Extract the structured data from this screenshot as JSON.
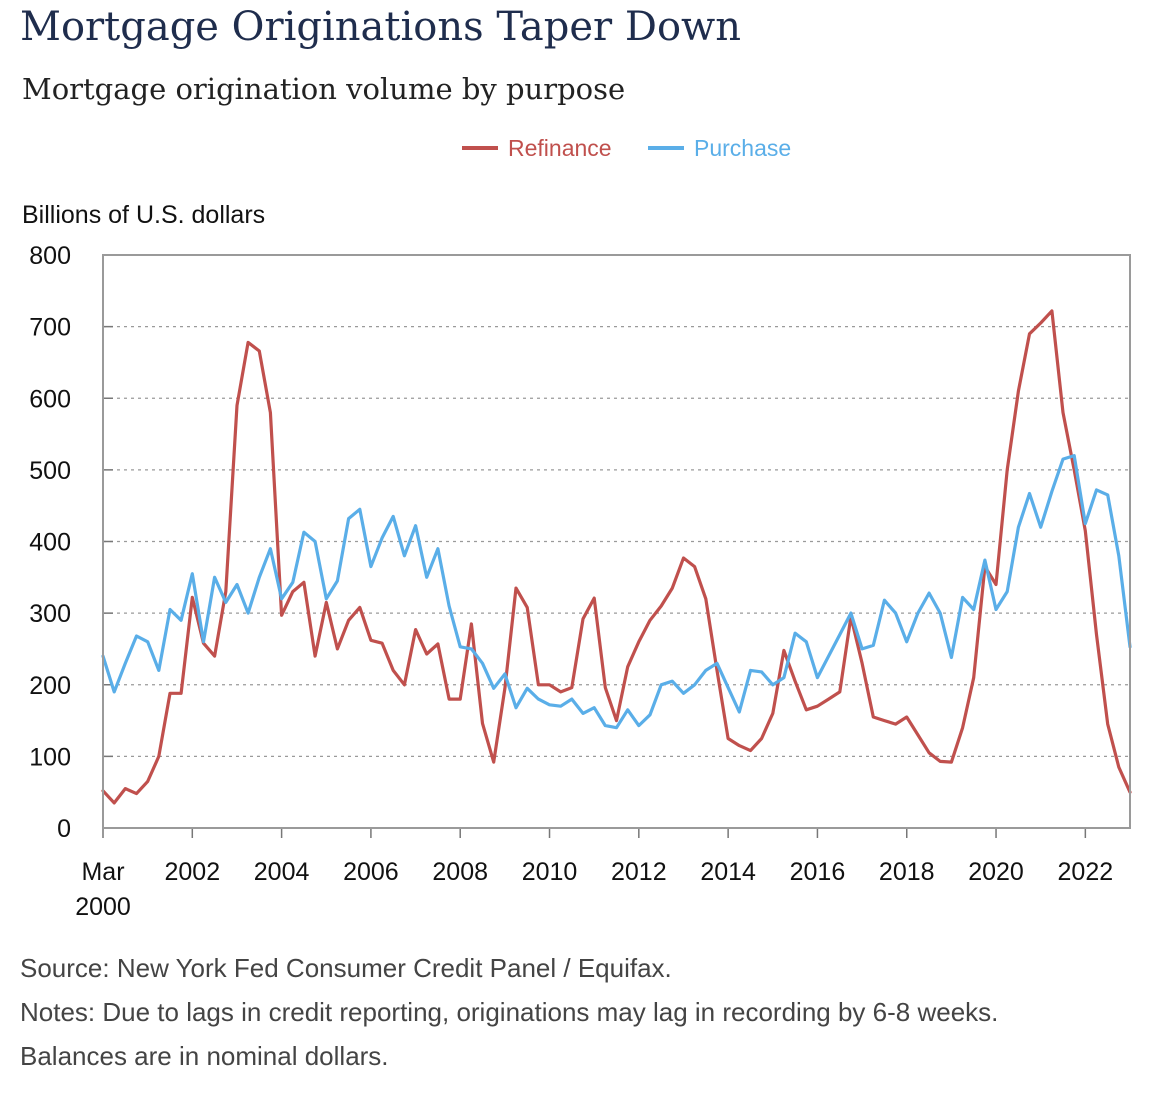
{
  "chart_data": {
    "type": "line",
    "title": "Mortgage Originations Taper Down",
    "subtitle": "Mortgage origination volume by purpose",
    "ylabel": "Billions of U.S. dollars",
    "ylim": [
      0,
      800
    ],
    "yticks": [
      "0",
      "100",
      "200",
      "300",
      "400",
      "500",
      "600",
      "700",
      "800"
    ],
    "xlim": [
      2000.0,
      2023.0
    ],
    "xticks": [
      {
        "value": 2000,
        "label": "Mar",
        "label2": "2000"
      },
      {
        "value": 2002,
        "label": "2002"
      },
      {
        "value": 2004,
        "label": "2004"
      },
      {
        "value": 2006,
        "label": "2006"
      },
      {
        "value": 2008,
        "label": "2008"
      },
      {
        "value": 2010,
        "label": "2010"
      },
      {
        "value": 2012,
        "label": "2012"
      },
      {
        "value": 2014,
        "label": "2014"
      },
      {
        "value": 2016,
        "label": "2016"
      },
      {
        "value": 2018,
        "label": "2018"
      },
      {
        "value": 2020,
        "label": "2020"
      },
      {
        "value": 2022,
        "label": "2022"
      }
    ],
    "legend": "top-center",
    "series": [
      {
        "name": "Refinance",
        "color": "#c0504d",
        "values": [
          52,
          35,
          55,
          48,
          65,
          100,
          188,
          188,
          322,
          258,
          240,
          330,
          590,
          678,
          666,
          580,
          297,
          330,
          343,
          240,
          315,
          250,
          290,
          308,
          262,
          258,
          220,
          200,
          277,
          243,
          257,
          180,
          180,
          285,
          146,
          92,
          195,
          335,
          308,
          200,
          200,
          190,
          196,
          292,
          321,
          196,
          150,
          225,
          260,
          290,
          310,
          335,
          377,
          365,
          320,
          220,
          125,
          115,
          108,
          125,
          160,
          248,
          205,
          165,
          170,
          180,
          190,
          295,
          230,
          155,
          150,
          145,
          155,
          130,
          105,
          93,
          92,
          140,
          210,
          365,
          340,
          500,
          610,
          690,
          705,
          722,
          580,
          500,
          415,
          270,
          145,
          85,
          50
        ],
        "x_start": 2000.0,
        "x_step": 0.25
      },
      {
        "name": "Purchase",
        "color": "#5aaee8",
        "values": [
          240,
          190,
          230,
          268,
          260,
          220,
          305,
          290,
          355,
          260,
          350,
          315,
          340,
          300,
          350,
          390,
          320,
          343,
          413,
          400,
          320,
          345,
          432,
          445,
          365,
          405,
          435,
          380,
          422,
          350,
          390,
          310,
          253,
          250,
          230,
          195,
          215,
          168,
          195,
          180,
          172,
          170,
          180,
          160,
          168,
          143,
          140,
          165,
          143,
          158,
          200,
          205,
          188,
          200,
          220,
          230,
          196,
          162,
          220,
          218,
          200,
          210,
          272,
          260,
          210,
          240,
          270,
          300,
          250,
          255,
          318,
          300,
          260,
          300,
          328,
          300,
          238,
          322,
          305,
          374,
          305,
          330,
          420,
          467,
          420,
          470,
          515,
          520,
          425,
          472,
          465,
          380,
          253
        ],
        "x_start": 2000.0,
        "x_step": 0.25
      }
    ]
  },
  "source": "Source: New York Fed Consumer Credit Panel / Equifax.",
  "notes": "Notes: Due to lags in credit reporting, originations may lag in recording by 6-8 weeks. Balances are in nominal dollars."
}
